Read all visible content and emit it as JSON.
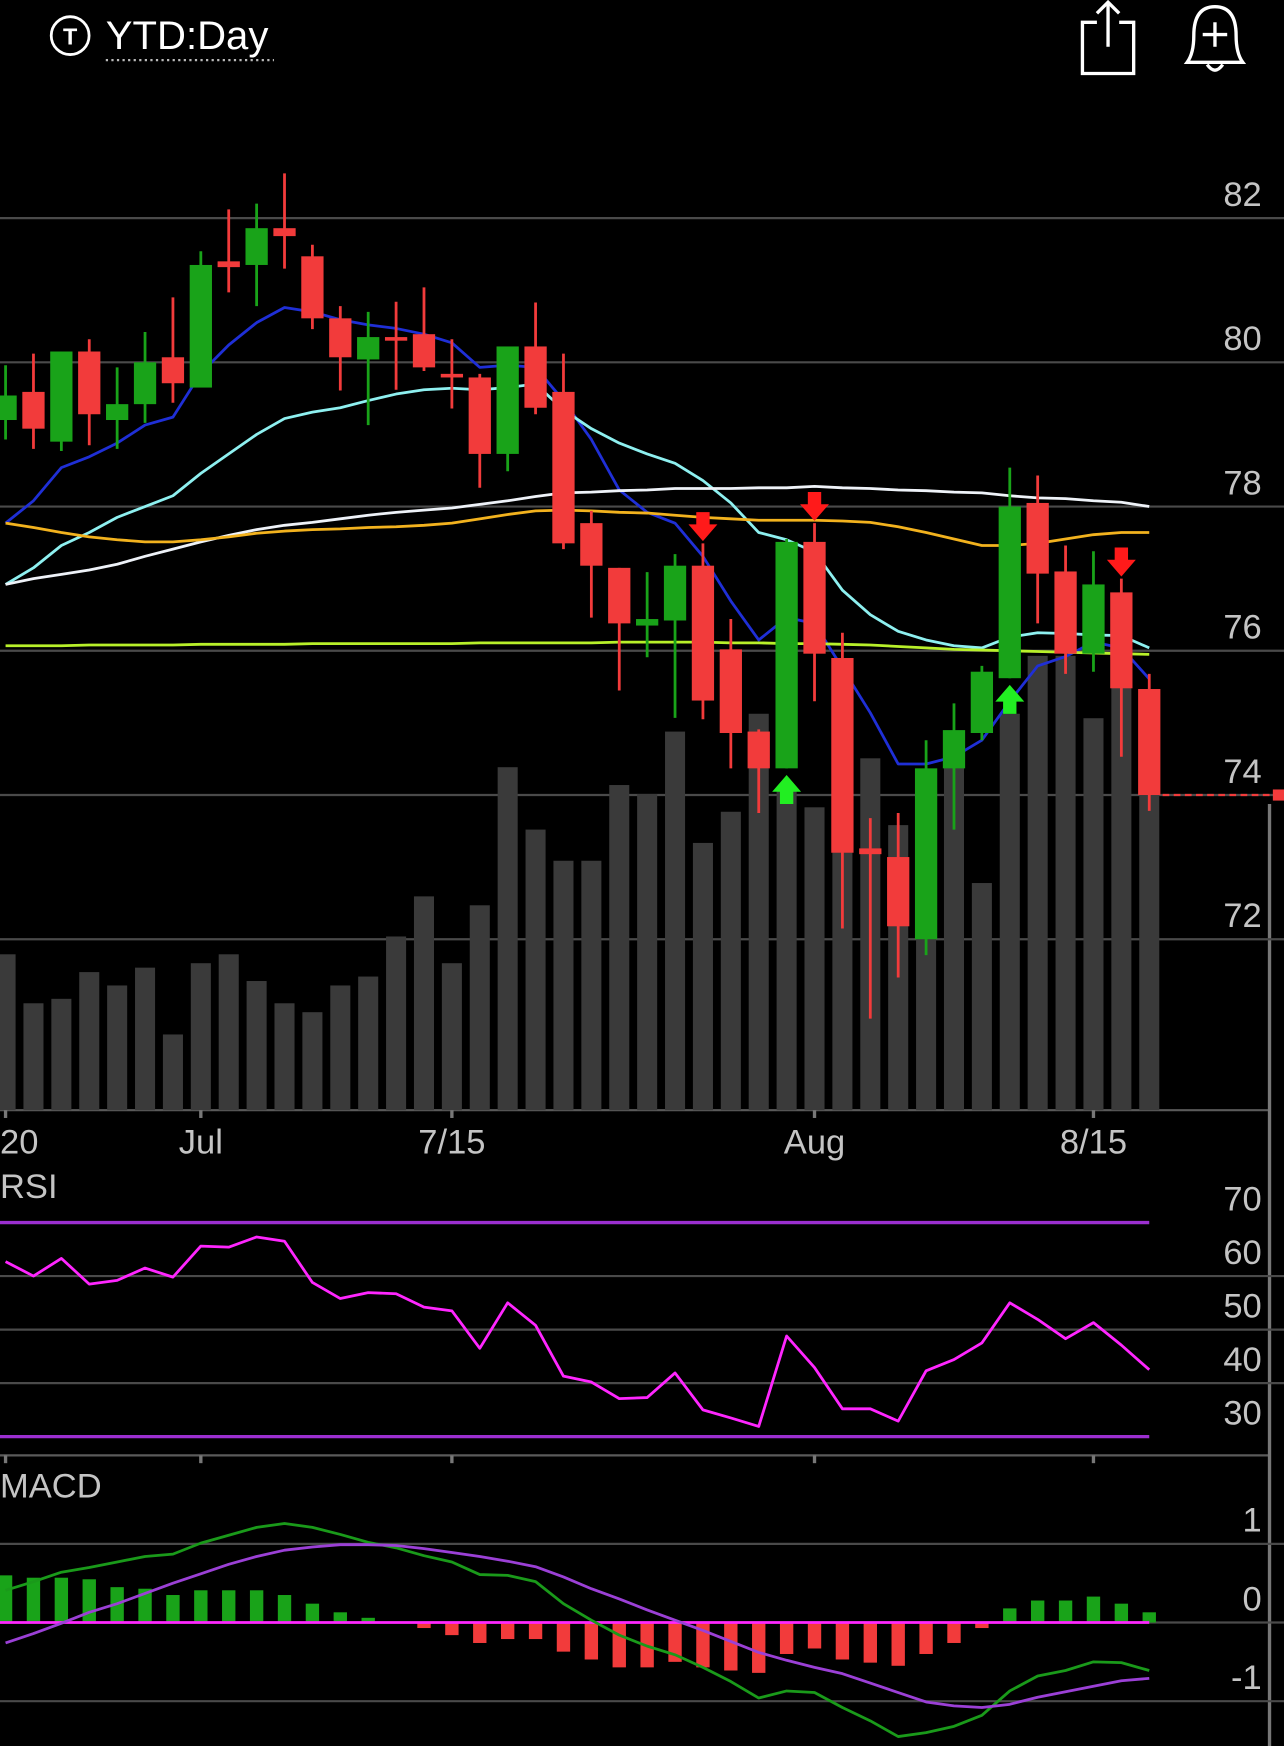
{
  "header": {
    "icon": "T",
    "timeframe": "YTD:Day"
  },
  "chart_data": [
    {
      "type": "candlestick",
      "categories": [
        "20",
        null,
        null,
        null,
        null,
        null,
        null,
        "Jul",
        null,
        null,
        null,
        null,
        null,
        null,
        null,
        null,
        "7/15",
        null,
        null,
        null,
        null,
        null,
        null,
        null,
        null,
        null,
        null,
        null,
        null,
        "Aug",
        null,
        null,
        null,
        null,
        null,
        null,
        null,
        null,
        null,
        "8/15",
        null,
        null
      ],
      "open": [
        79.2,
        79.59,
        78.9,
        80.15,
        79.2,
        79.42,
        80.07,
        79.65,
        81.4,
        81.35,
        81.86,
        81.47,
        80.61,
        80.04,
        80.35,
        80.39,
        79.84,
        79.79,
        78.73,
        80.22,
        79.59,
        77.77,
        77.15,
        76.35,
        76.42,
        77.18,
        76.02,
        74.88,
        74.37,
        77.51,
        75.9,
        73.26,
        73.14,
        72.0,
        74.37,
        74.86,
        75.62,
        78.05,
        77.1,
        75.96,
        76.81,
        75.47
      ],
      "high": [
        79.96,
        80.12,
        80.15,
        80.32,
        79.93,
        80.42,
        80.9,
        81.54,
        82.12,
        82.2,
        82.62,
        81.63,
        80.78,
        80.7,
        80.84,
        81.04,
        80.32,
        79.84,
        80.22,
        80.83,
        80.12,
        77.94,
        77.15,
        77.09,
        77.34,
        77.49,
        76.44,
        74.91,
        77.55,
        77.77,
        76.25,
        73.68,
        73.75,
        74.76,
        75.27,
        75.79,
        78.54,
        78.43,
        77.46,
        77.38,
        77.0,
        75.68
      ],
      "low": [
        78.93,
        78.8,
        78.77,
        78.85,
        78.8,
        79.16,
        79.44,
        79.65,
        80.97,
        80.78,
        81.3,
        80.46,
        79.61,
        79.13,
        79.62,
        79.88,
        79.36,
        78.26,
        78.49,
        79.28,
        77.41,
        76.46,
        75.45,
        75.91,
        75.07,
        75.05,
        74.37,
        73.75,
        74.37,
        75.3,
        72.15,
        70.9,
        71.47,
        71.78,
        73.52,
        74.76,
        75.62,
        76.38,
        75.68,
        75.71,
        74.53,
        73.78
      ],
      "close": [
        79.54,
        79.08,
        80.15,
        79.28,
        79.42,
        80.0,
        79.71,
        81.35,
        81.32,
        81.86,
        81.75,
        80.61,
        80.07,
        80.35,
        80.3,
        79.93,
        79.79,
        78.73,
        80.22,
        79.37,
        77.49,
        77.18,
        76.38,
        76.44,
        77.18,
        75.31,
        74.86,
        74.37,
        77.51,
        75.96,
        73.2,
        73.18,
        72.18,
        74.37,
        74.9,
        75.71,
        78.0,
        77.07,
        75.96,
        76.92,
        75.48,
        74.0
      ],
      "volume": [
        35,
        24,
        25,
        31,
        28,
        32,
        17,
        33,
        35,
        29,
        24,
        22,
        28,
        30,
        39,
        48,
        33,
        46,
        77,
        63,
        56,
        56,
        73,
        71,
        85,
        60,
        67,
        89,
        72,
        68,
        75,
        79,
        64,
        49,
        77,
        51,
        89,
        102,
        102,
        88,
        101,
        94
      ],
      "volume_lim": [
        0,
        120
      ],
      "up_color": "#19a319",
      "down_color": "#f23b3b",
      "volume_color": "#3a3a3a",
      "ylim": [
        69.63,
        83.48
      ],
      "yticks": [
        72,
        74,
        76,
        78,
        80,
        82
      ],
      "grid": true,
      "moving_averages": [
        {
          "color": "#1f2fd6",
          "values": [
            77.77,
            78.08,
            78.54,
            78.69,
            78.88,
            79.13,
            79.24,
            79.85,
            80.24,
            80.55,
            80.76,
            80.7,
            80.59,
            80.52,
            80.47,
            80.39,
            80.27,
            79.93,
            79.96,
            79.93,
            79.47,
            78.93,
            78.23,
            77.92,
            77.77,
            77.31,
            76.69,
            76.15,
            76.46,
            76.38,
            75.76,
            75.14,
            74.43,
            74.43,
            74.53,
            74.76,
            75.3,
            75.79,
            75.92,
            76.12,
            76.04,
            75.61
          ]
        },
        {
          "color": "#8ef0f0",
          "values": [
            76.92,
            77.15,
            77.46,
            77.64,
            77.85,
            78.0,
            78.15,
            78.46,
            78.73,
            79.0,
            79.22,
            79.31,
            79.37,
            79.47,
            79.56,
            79.62,
            79.64,
            79.62,
            79.65,
            79.7,
            79.34,
            79.08,
            78.88,
            78.73,
            78.6,
            78.36,
            78.05,
            77.64,
            77.54,
            77.37,
            76.84,
            76.5,
            76.27,
            76.15,
            76.07,
            76.04,
            76.19,
            76.25,
            76.24,
            76.22,
            76.21,
            76.04
          ]
        },
        {
          "color": "#eef2f8",
          "values": [
            76.92,
            77.0,
            77.06,
            77.12,
            77.2,
            77.31,
            77.41,
            77.51,
            77.6,
            77.68,
            77.74,
            77.78,
            77.83,
            77.88,
            77.92,
            77.95,
            77.98,
            78.03,
            78.08,
            78.14,
            78.19,
            78.2,
            78.22,
            78.23,
            78.25,
            78.25,
            78.25,
            78.26,
            78.26,
            78.28,
            78.26,
            78.25,
            78.23,
            78.22,
            78.2,
            78.19,
            78.15,
            78.12,
            78.11,
            78.08,
            78.06,
            78.0
          ]
        },
        {
          "color": "#f2b21e",
          "values": [
            77.77,
            77.71,
            77.64,
            77.58,
            77.54,
            77.51,
            77.51,
            77.54,
            77.58,
            77.63,
            77.66,
            77.68,
            77.69,
            77.71,
            77.72,
            77.74,
            77.77,
            77.83,
            77.89,
            77.94,
            77.95,
            77.94,
            77.92,
            77.91,
            77.88,
            77.85,
            77.83,
            77.81,
            77.81,
            77.81,
            77.8,
            77.78,
            77.72,
            77.64,
            77.55,
            77.46,
            77.46,
            77.49,
            77.55,
            77.61,
            77.64,
            77.64
          ]
        },
        {
          "color": "#b8f02a",
          "values": [
            76.07,
            76.07,
            76.07,
            76.08,
            76.08,
            76.08,
            76.08,
            76.09,
            76.09,
            76.09,
            76.09,
            76.1,
            76.1,
            76.1,
            76.1,
            76.1,
            76.1,
            76.11,
            76.11,
            76.11,
            76.11,
            76.11,
            76.12,
            76.12,
            76.12,
            76.12,
            76.11,
            76.11,
            76.1,
            76.1,
            76.09,
            76.08,
            76.06,
            76.04,
            76.02,
            76.01,
            76.0,
            75.99,
            75.98,
            75.97,
            75.96,
            75.95
          ]
        }
      ],
      "buy_signals": [
        28,
        36
      ],
      "buy_color": "#22ee22",
      "sell_signals": [
        25,
        29,
        40
      ],
      "sell_color": "#ff1a1a"
    },
    {
      "type": "line",
      "title": "RSI",
      "ylim": [
        26.5,
        78.3
      ],
      "yticks": [
        30,
        40,
        50,
        60,
        70
      ],
      "levels": [
        70,
        30
      ],
      "level_color": "#9b2fd0",
      "series": [
        {
          "color": "#ff26ff",
          "values": [
            62.7,
            60.0,
            63.3,
            58.5,
            59.2,
            61.5,
            59.8,
            65.6,
            65.4,
            67.3,
            66.5,
            58.8,
            55.8,
            56.9,
            56.7,
            54.2,
            53.5,
            46.5,
            55.0,
            50.8,
            41.3,
            40.2,
            37.1,
            37.3,
            41.9,
            35.0,
            33.5,
            31.9,
            48.8,
            42.9,
            35.2,
            35.2,
            32.9,
            42.3,
            44.4,
            47.5,
            55.0,
            51.9,
            48.3,
            51.3,
            47.1,
            42.5
          ]
        }
      ]
    },
    {
      "type": "macd",
      "title": "MACD",
      "ylim": [
        -1.57,
        1.97
      ],
      "yticks": [
        -1,
        0,
        1
      ],
      "zero_color": "#ff26ff",
      "series": [
        {
          "color": "#1a9a1a",
          "values": [
            0.41,
            0.52,
            0.64,
            0.7,
            0.77,
            0.84,
            0.87,
            1.01,
            1.11,
            1.21,
            1.26,
            1.21,
            1.12,
            1.02,
            0.95,
            0.85,
            0.77,
            0.61,
            0.6,
            0.52,
            0.24,
            0.03,
            -0.16,
            -0.3,
            -0.41,
            -0.57,
            -0.75,
            -0.96,
            -0.87,
            -0.89,
            -1.08,
            -1.25,
            -1.45,
            -1.4,
            -1.32,
            -1.18,
            -0.87,
            -0.68,
            -0.61,
            -0.5,
            -0.51,
            -0.61
          ]
        },
        {
          "color": "#9b40d6",
          "values": [
            -0.26,
            -0.14,
            -0.01,
            0.13,
            0.24,
            0.37,
            0.5,
            0.62,
            0.74,
            0.84,
            0.92,
            0.96,
            0.99,
            0.99,
            0.98,
            0.94,
            0.89,
            0.84,
            0.78,
            0.71,
            0.58,
            0.43,
            0.3,
            0.16,
            0.03,
            -0.1,
            -0.24,
            -0.38,
            -0.48,
            -0.57,
            -0.65,
            -0.77,
            -0.89,
            -1.01,
            -1.06,
            -1.08,
            -1.04,
            -0.95,
            -0.88,
            -0.81,
            -0.74,
            -0.71
          ]
        }
      ],
      "histogram": {
        "up_color": "#19a319",
        "down_color": "#f23b3b",
        "values": [
          0.6,
          0.57,
          0.57,
          0.55,
          0.45,
          0.43,
          0.35,
          0.41,
          0.41,
          0.41,
          0.35,
          0.24,
          0.13,
          0.06,
          -0.01,
          -0.07,
          -0.16,
          -0.26,
          -0.21,
          -0.21,
          -0.37,
          -0.47,
          -0.57,
          -0.57,
          -0.5,
          -0.57,
          -0.61,
          -0.64,
          -0.4,
          -0.33,
          -0.47,
          -0.51,
          -0.55,
          -0.4,
          -0.26,
          -0.07,
          0.18,
          0.28,
          0.28,
          0.33,
          0.24,
          0.13
        ]
      }
    }
  ]
}
